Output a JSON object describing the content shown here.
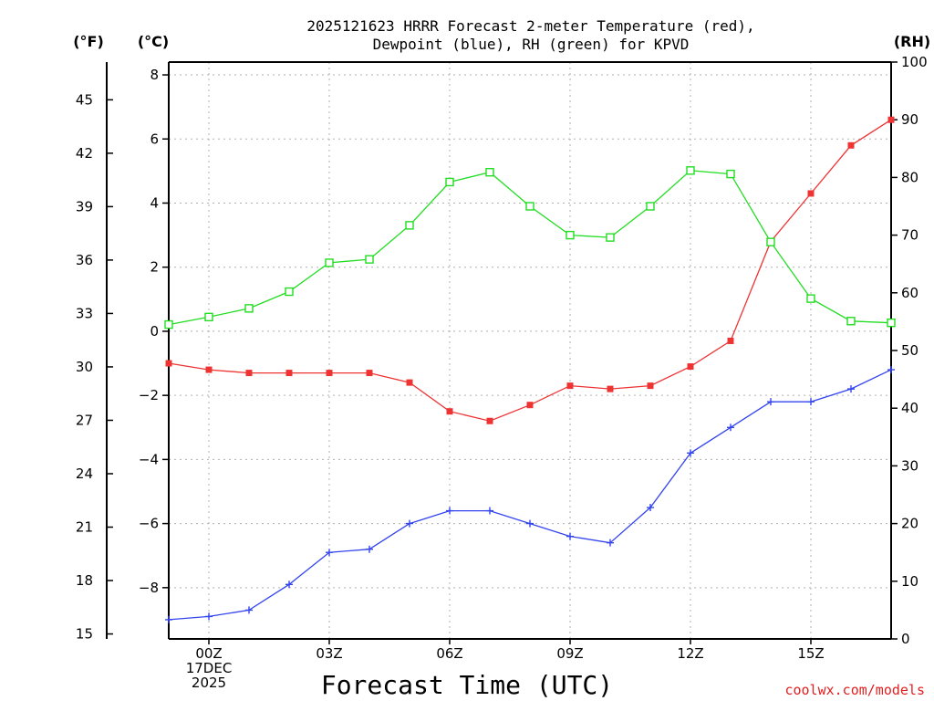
{
  "chart_data": {
    "type": "line",
    "title_lines": [
      "2025121623 HRRR Forecast 2-meter Temperature (red),",
      "Dewpoint (blue), RH (green) for KPVD"
    ],
    "xlabel": "Forecast Time (UTC)",
    "credit": "coolwx.com/models",
    "units": {
      "fahrenheit": "(°F)",
      "celsius": "(°C)",
      "rh": "(RH)"
    },
    "x": [
      -1,
      0,
      1,
      2,
      3,
      4,
      5,
      6,
      7,
      8,
      9,
      10,
      11,
      12,
      13,
      14,
      15,
      16,
      17
    ],
    "xlim": [
      -1,
      17
    ],
    "x_ticks": [
      {
        "x": 0,
        "lines": [
          "00Z",
          "17DEC",
          "2025"
        ]
      },
      {
        "x": 3,
        "lines": [
          "03Z"
        ]
      },
      {
        "x": 6,
        "lines": [
          "06Z"
        ]
      },
      {
        "x": 9,
        "lines": [
          "09Z"
        ]
      },
      {
        "x": 12,
        "lines": [
          "12Z"
        ]
      },
      {
        "x": 15,
        "lines": [
          "15Z"
        ]
      }
    ],
    "celsius_axis": {
      "ylim": [
        -9.6,
        8.4
      ],
      "ticks": [
        "8",
        "6",
        "4",
        "2",
        "0",
        "−2",
        "−4",
        "−6",
        "−8"
      ],
      "tick_values": [
        8,
        6,
        4,
        2,
        0,
        -2,
        -4,
        -6,
        -8
      ]
    },
    "fahrenheit_axis": {
      "ticks": [
        "45",
        "42",
        "39",
        "36",
        "33",
        "30",
        "27",
        "24",
        "21",
        "18",
        "15"
      ],
      "tick_values": [
        45,
        42,
        39,
        36,
        33,
        30,
        27,
        24,
        21,
        18,
        15
      ]
    },
    "rh_axis": {
      "ylim": [
        0,
        100
      ],
      "ticks": [
        "100",
        "90",
        "80",
        "70",
        "60",
        "50",
        "40",
        "30",
        "20",
        "10",
        "0"
      ],
      "tick_values": [
        100,
        90,
        80,
        70,
        60,
        50,
        40,
        30,
        20,
        10,
        0
      ]
    },
    "series": [
      {
        "name": "2-meter Temperature",
        "axis": "celsius",
        "color": "#ee3333",
        "marker": "filled-square",
        "values": [
          -1.0,
          -1.2,
          -1.3,
          -1.3,
          -1.3,
          -1.3,
          -1.6,
          -2.5,
          -2.8,
          -2.3,
          -1.7,
          -1.8,
          -1.7,
          -1.1,
          -0.3,
          2.8,
          4.3,
          5.8,
          6.6
        ]
      },
      {
        "name": "Dewpoint",
        "axis": "celsius",
        "color": "#3344ee",
        "marker": "plus",
        "values": [
          -9.0,
          -8.9,
          -8.7,
          -7.9,
          -6.9,
          -6.8,
          -6.0,
          -5.6,
          -5.6,
          -6.0,
          -6.4,
          -6.6,
          -5.5,
          -3.8,
          -3.0,
          -2.2,
          -2.2,
          -1.8,
          -1.2
        ]
      },
      {
        "name": "RH",
        "axis": "rh",
        "color": "#22dd22",
        "marker": "open-square",
        "values": [
          54.5,
          55.8,
          57.3,
          60.2,
          65.2,
          65.8,
          71.7,
          79.2,
          80.9,
          75.0,
          70.0,
          69.6,
          75.0,
          81.2,
          80.6,
          68.8,
          59.0,
          55.1,
          54.8
        ]
      }
    ]
  }
}
